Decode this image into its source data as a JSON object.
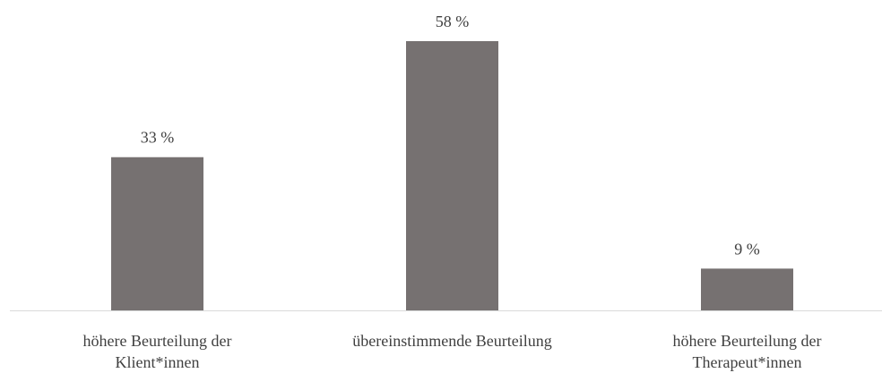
{
  "chart_data": {
    "type": "bar",
    "categories": [
      "höhere Beurteilung der Klient*innen",
      "übereinstimmende Beurteilung",
      "höhere Beurteilung der Therapeut*innen"
    ],
    "values": [
      33,
      58,
      9
    ],
    "value_labels": [
      "33 %",
      "58 %",
      "9 %"
    ],
    "color": "#767171"
  }
}
